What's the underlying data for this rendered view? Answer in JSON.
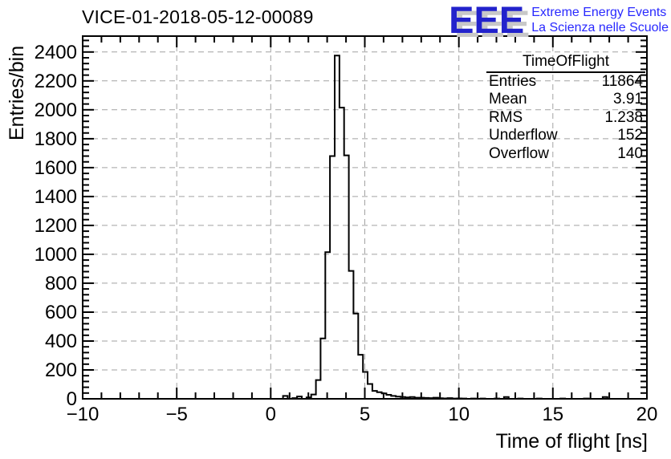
{
  "title": "VICE-01-2018-05-12-00089",
  "logo": {
    "acronym": "EEE",
    "line1": "Extreme Energy Events",
    "line2": "La Scienza nelle Scuole",
    "acronym_color": "#2222cc",
    "text_color": "#2929ff",
    "shadow_color": "#c8c8c8"
  },
  "stats": {
    "title": "TimeOfFlight",
    "rows": [
      {
        "label": "Entries",
        "value": "11864"
      },
      {
        "label": "Mean",
        "value": "3.91"
      },
      {
        "label": "RMS",
        "value": "1.238"
      },
      {
        "label": "Underflow",
        "value": "152"
      },
      {
        "label": "Overflow",
        "value": "140"
      }
    ]
  },
  "chart_data": {
    "type": "bar",
    "subtype": "step-histogram",
    "title": "VICE-01-2018-05-12-00089",
    "xlabel": "Time of flight [ns]",
    "ylabel": "Entries/bin",
    "xlim": [
      -10,
      20
    ],
    "ylim": [
      0,
      2510
    ],
    "grid": true,
    "line_color": "#000000",
    "grid_color": "#a2a2a2",
    "x_major_ticks": [
      -10,
      -5,
      0,
      5,
      10,
      15,
      20
    ],
    "x_tick_labels": [
      "−10",
      "−5",
      "0",
      "5",
      "10",
      "15",
      "20"
    ],
    "x_minor_step": 1,
    "y_major_ticks": [
      0,
      200,
      400,
      600,
      800,
      1000,
      1200,
      1400,
      1600,
      1800,
      2000,
      2200,
      2400
    ],
    "y_tick_labels": [
      "0",
      "200",
      "400",
      "600",
      "800",
      "1000",
      "1200",
      "1400",
      "1600",
      "1800",
      "2000",
      "2200",
      "2400"
    ],
    "y_minor_step": 40,
    "y_major_step": 200,
    "bin_start": 0.65,
    "bin_width": 0.25,
    "bin_values": [
      20,
      0,
      5,
      16,
      0,
      10,
      30,
      130,
      418,
      1015,
      1680,
      2375,
      2015,
      1685,
      885,
      590,
      305,
      186,
      103,
      55,
      46,
      37,
      28,
      20,
      15,
      12,
      10,
      12,
      8,
      8,
      6,
      5,
      8,
      4,
      3,
      5,
      2,
      3,
      2,
      0,
      2,
      0,
      2,
      0,
      0,
      2,
      0,
      12,
      0,
      0,
      2,
      0,
      0,
      0,
      2,
      0,
      0,
      0,
      0,
      2,
      0,
      0,
      0,
      0,
      2,
      0,
      0,
      0,
      12,
      0
    ],
    "stats_box": {
      "entries": 11864,
      "mean": 3.91,
      "rms": 1.238,
      "underflow": 152,
      "overflow": 140
    }
  }
}
